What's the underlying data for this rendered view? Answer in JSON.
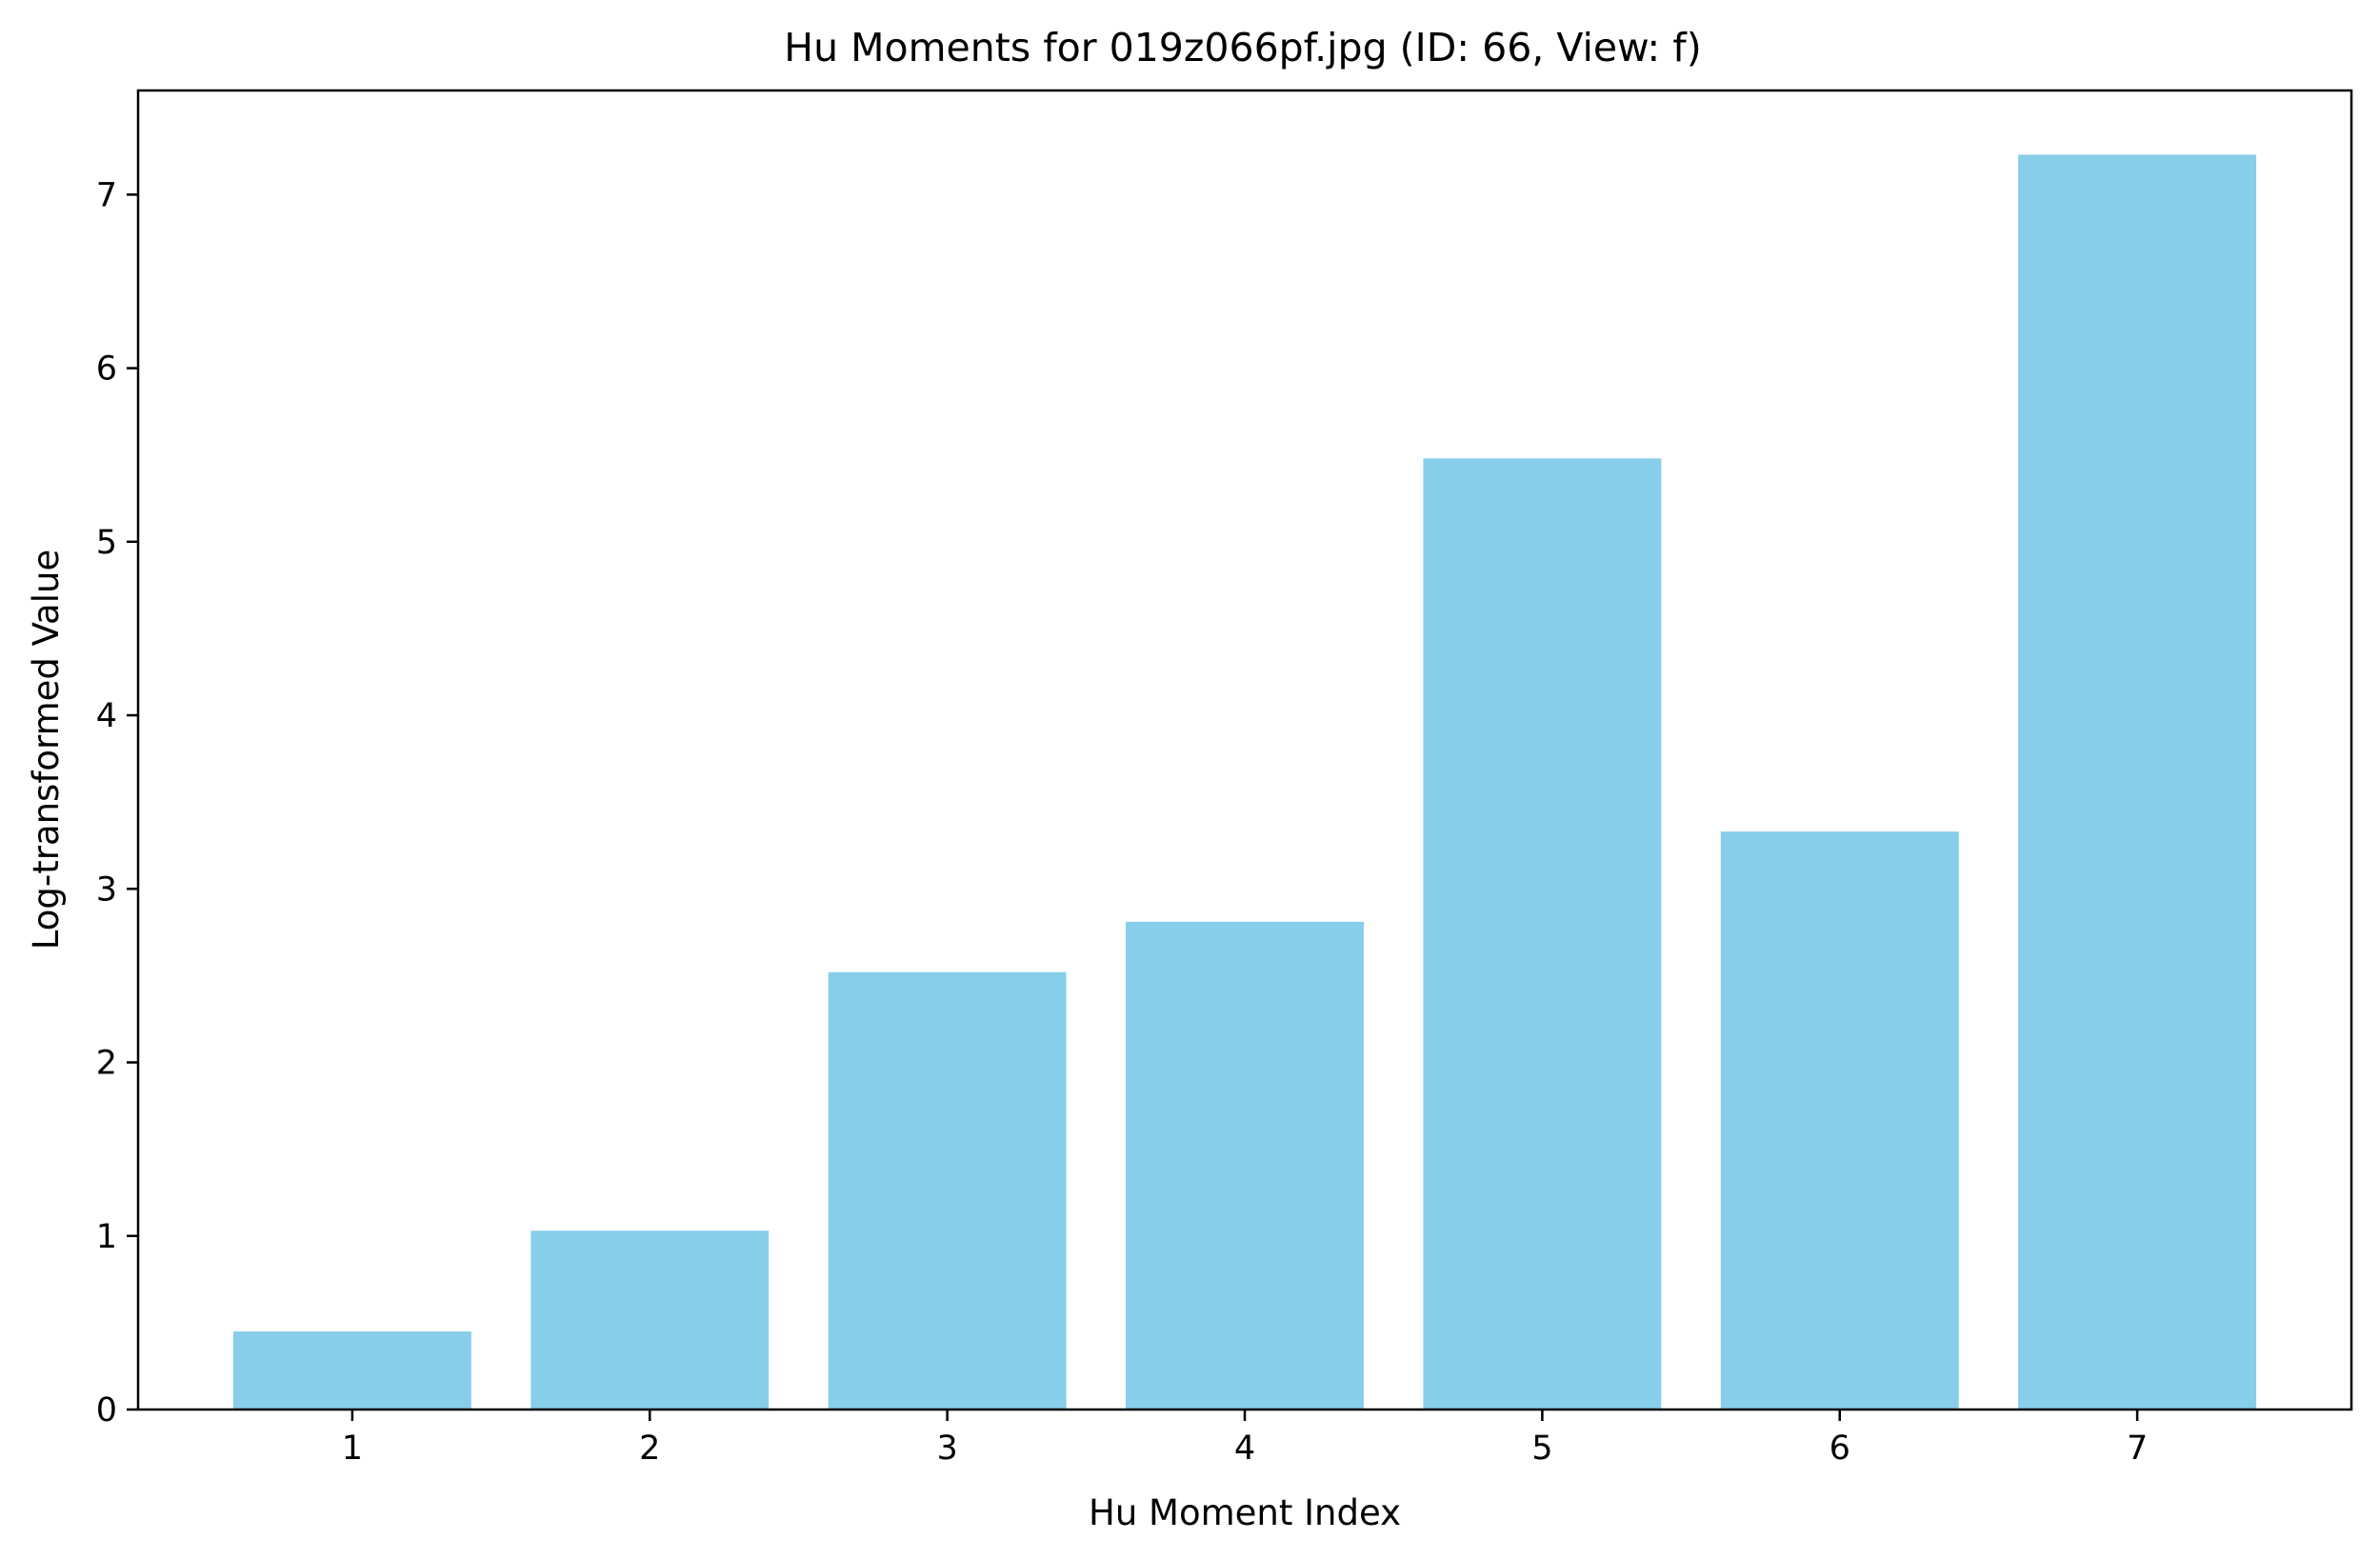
{
  "chart_data": {
    "type": "bar",
    "title": "Hu Moments for 019z066pf.jpg (ID: 66, View: f)",
    "xlabel": "Hu Moment Index",
    "ylabel": "Log-transformed Value",
    "categories": [
      "1",
      "2",
      "3",
      "4",
      "5",
      "6",
      "7"
    ],
    "values": [
      0.45,
      1.03,
      2.52,
      2.81,
      5.48,
      3.33,
      7.23
    ],
    "ylim": [
      0,
      7.6
    ],
    "yticks": [
      0,
      1,
      2,
      3,
      4,
      5,
      6,
      7
    ],
    "bar_color": "#87CEEB",
    "grid": false
  }
}
